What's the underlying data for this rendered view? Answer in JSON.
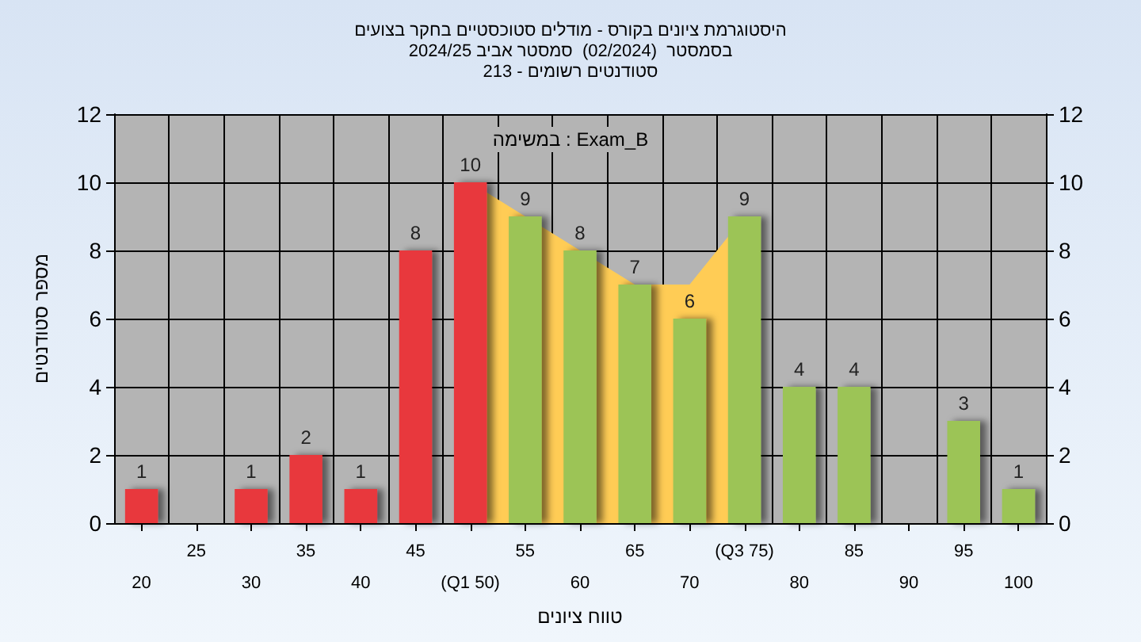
{
  "chart_data": {
    "type": "bar",
    "title": "היסטוגרמת ציונים בקורס - מודלים סטוכסטיים בחקר בצועים",
    "subtitle": "בסמסטר  (02/2024)  סמסטר אביב 2024/25\nסטודנטים רשומים - 213",
    "xlabel": "טווח ציונים",
    "ylabel": "מספר סטודנטים",
    "annotations": [
      "במשימה : Exam_B"
    ],
    "categories": [
      "20",
      "25",
      "30",
      "35",
      "40",
      "45",
      "(Q1 50)",
      "55",
      "60",
      "65",
      "70",
      "(Q3 75)",
      "80",
      "85",
      "90",
      "95",
      "100"
    ],
    "series": [
      {
        "type": "area",
        "color": "#ffcc55",
        "values": [
          null,
          null,
          null,
          null,
          null,
          null,
          10,
          9,
          8,
          7,
          7,
          9,
          null,
          null,
          null,
          null,
          null
        ],
        "value_labels": [
          null,
          null,
          null,
          null,
          null,
          null,
          null,
          null,
          null,
          null,
          null,
          null,
          null,
          null,
          null,
          null,
          null
        ]
      },
      {
        "values": [
          1,
          null,
          1,
          2,
          1,
          8,
          10,
          9,
          8,
          7,
          6,
          9,
          4,
          4,
          null,
          3,
          1
        ],
        "colors": [
          "#e8383c",
          "#e8383c",
          "#e8383c",
          "#e8383c",
          "#e8383c",
          "#e8383c",
          "#e8383c",
          "#9cc456",
          "#9cc456",
          "#9cc456",
          "#9cc456",
          "#9cc456",
          "#9cc456",
          "#9cc456",
          "#9cc456",
          "#9cc456",
          "#9cc456"
        ]
      }
    ],
    "data_labels": true,
    "ylim": [
      0,
      12
    ],
    "yticks": [
      0,
      2,
      4,
      6,
      8,
      10,
      12
    ],
    "y2lim": [
      0,
      12
    ],
    "y2ticks": [
      0,
      2,
      4,
      6,
      8,
      10,
      12
    ],
    "grid": true
  }
}
